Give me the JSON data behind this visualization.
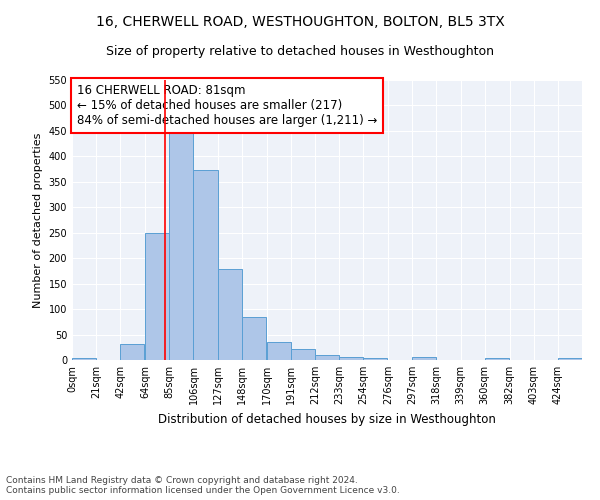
{
  "title": "16, CHERWELL ROAD, WESTHOUGHTON, BOLTON, BL5 3TX",
  "subtitle": "Size of property relative to detached houses in Westhoughton",
  "xlabel": "Distribution of detached houses by size in Westhoughton",
  "ylabel": "Number of detached properties",
  "bar_heights": [
    4,
    0,
    31,
    250,
    447,
    373,
    178,
    85,
    36,
    22,
    10,
    6,
    4,
    0,
    5,
    0,
    0,
    4,
    0,
    0,
    4
  ],
  "bin_width": 21,
  "bins_start": [
    0,
    21,
    42,
    64,
    85,
    106,
    127,
    148,
    170,
    191,
    212,
    233,
    254,
    276,
    297,
    318,
    339,
    360,
    382,
    403,
    424
  ],
  "tick_labels": [
    "0sqm",
    "21sqm",
    "42sqm",
    "64sqm",
    "85sqm",
    "106sqm",
    "127sqm",
    "148sqm",
    "170sqm",
    "191sqm",
    "212sqm",
    "233sqm",
    "254sqm",
    "276sqm",
    "297sqm",
    "318sqm",
    "339sqm",
    "360sqm",
    "382sqm",
    "403sqm",
    "424sqm"
  ],
  "bar_color": "#aec6e8",
  "bar_edge_color": "#5a9fd4",
  "annotation_text": "16 CHERWELL ROAD: 81sqm\n← 15% of detached houses are smaller (217)\n84% of semi-detached houses are larger (1,211) →",
  "red_line_x": 81,
  "ylim": [
    0,
    550
  ],
  "xlim": [
    0,
    445
  ],
  "background_color": "#eef2f9",
  "grid_color": "#ffffff",
  "footer_line1": "Contains HM Land Registry data © Crown copyright and database right 2024.",
  "footer_line2": "Contains public sector information licensed under the Open Government Licence v3.0.",
  "title_fontsize": 10,
  "subtitle_fontsize": 9,
  "annotation_fontsize": 8.5,
  "ylabel_fontsize": 8,
  "xlabel_fontsize": 8.5,
  "tick_fontsize": 7,
  "footer_fontsize": 6.5
}
